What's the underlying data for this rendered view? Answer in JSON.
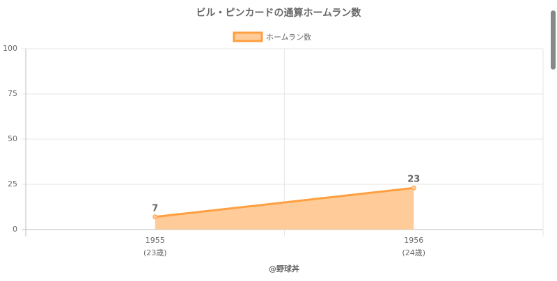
{
  "chart_data": {
    "type": "line",
    "title": "ビル・ピンカードの通算ホームラン数",
    "categories": [
      "1955",
      "1956"
    ],
    "category_sublabels": [
      "(23歳)",
      "(24歳)"
    ],
    "series": [
      {
        "name": "ホームラン数",
        "color": "#ff9f40",
        "fill": "#ffcc99",
        "values": [
          7,
          23
        ]
      }
    ],
    "x_label": "@野球丼",
    "ylim": [
      0,
      100
    ],
    "yticks": [
      0,
      25,
      50,
      75,
      100
    ],
    "grid": true,
    "legend": "top"
  }
}
